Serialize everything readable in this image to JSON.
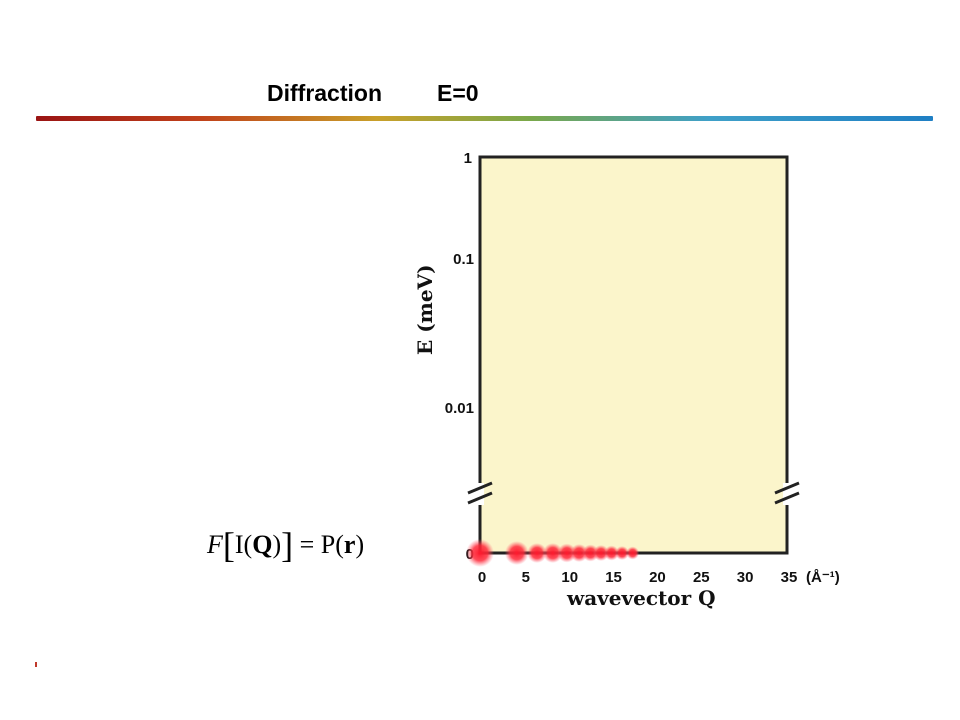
{
  "slide": {
    "title_left": "Diffraction",
    "title_right": "E=0"
  },
  "formula": {
    "F": "F",
    "I": "I(",
    "Q": "Q",
    "close": ")",
    "eq": "= P(",
    "r": "r",
    "end": ")"
  },
  "colors": {
    "plot_bg": "#fbf5cb",
    "dot": "#ff1a2e",
    "rule_start": "#9a1414",
    "rule_end": "#1f7fc4"
  },
  "chart_data": {
    "type": "scatter",
    "ylabel": "E (meV)",
    "xlabel": "wavevector Q",
    "x_unit": "(Å⁻¹)",
    "x_ticks": [
      0,
      5,
      10,
      15,
      20,
      25,
      30,
      35
    ],
    "y_ticks": [
      "1",
      "0.1",
      "0.01",
      "0"
    ],
    "xlim": [
      0,
      35
    ],
    "y_scale": "log with break above 0",
    "axis_break": true,
    "grid": false,
    "series": [
      {
        "points": [
          {
            "x": 0,
            "y": 0,
            "size": 1.0
          },
          {
            "x": 4.2,
            "y": 0,
            "size": 0.8
          },
          {
            "x": 6.5,
            "y": 0,
            "size": 0.6
          },
          {
            "x": 8.3,
            "y": 0,
            "size": 0.6
          },
          {
            "x": 9.9,
            "y": 0,
            "size": 0.55
          },
          {
            "x": 11.3,
            "y": 0,
            "size": 0.5
          },
          {
            "x": 12.6,
            "y": 0,
            "size": 0.45
          },
          {
            "x": 13.8,
            "y": 0,
            "size": 0.4
          },
          {
            "x": 15.0,
            "y": 0,
            "size": 0.35
          },
          {
            "x": 16.2,
            "y": 0,
            "size": 0.3
          },
          {
            "x": 17.4,
            "y": 0,
            "size": 0.25
          }
        ]
      }
    ]
  }
}
